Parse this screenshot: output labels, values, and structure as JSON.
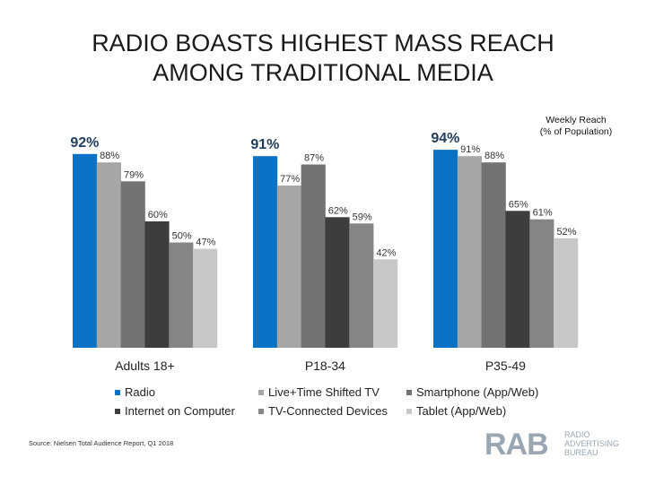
{
  "title_lines": [
    "RADIO BOASTS HIGHEST MASS REACH",
    "AMONG TRADITIONAL MEDIA"
  ],
  "weekly_reach": [
    "Weekly Reach",
    "(% of Population)"
  ],
  "source": "Source: Nielsen Total Audience Report, Q1 2018",
  "logo": {
    "mark": "RAB",
    "lines": [
      "RADIO",
      "ADVERTISING",
      "BUREAU"
    ]
  },
  "colors": {
    "radio": "#0a72c4",
    "live_tv": "#a6a6a6",
    "smartphone": "#737373",
    "internet": "#3d3d3d",
    "tv_connected": "#858585",
    "tablet": "#c8c8c8"
  },
  "chart_data": {
    "type": "bar",
    "title": "Weekly Reach (% of Population)",
    "ylabel": "Weekly Reach (% of Population)",
    "ylim": [
      0,
      100
    ],
    "grid": false,
    "categories": [
      "Adults 18+",
      "P18-34",
      "P35-49"
    ],
    "series": [
      {
        "name": "Radio",
        "color": "#0a72c4",
        "values": [
          92,
          91,
          94
        ],
        "labels": [
          "92%",
          "91%",
          "94%"
        ]
      },
      {
        "name": "Live+Time Shifted TV",
        "color": "#a6a6a6",
        "values": [
          88,
          77,
          91
        ],
        "labels": [
          "88%",
          "77%",
          "91%"
        ]
      },
      {
        "name": "Smartphone (App/Web)",
        "color": "#737373",
        "values": [
          79,
          87,
          88
        ],
        "labels": [
          "79%",
          "87%",
          "88%"
        ]
      },
      {
        "name": "Internet on Computer",
        "color": "#3d3d3d",
        "values": [
          60,
          62,
          65
        ],
        "labels": [
          "60%",
          "62%",
          "65%"
        ]
      },
      {
        "name": "TV-Connected Devices",
        "color": "#858585",
        "values": [
          50,
          59,
          61
        ],
        "labels": [
          "50%",
          "59%",
          "61%"
        ]
      },
      {
        "name": "Tablet (App/Web)",
        "color": "#c8c8c8",
        "values": [
          47,
          42,
          52
        ],
        "labels": [
          "47%",
          "42%",
          "52%"
        ]
      }
    ],
    "legend_position": "bottom"
  }
}
